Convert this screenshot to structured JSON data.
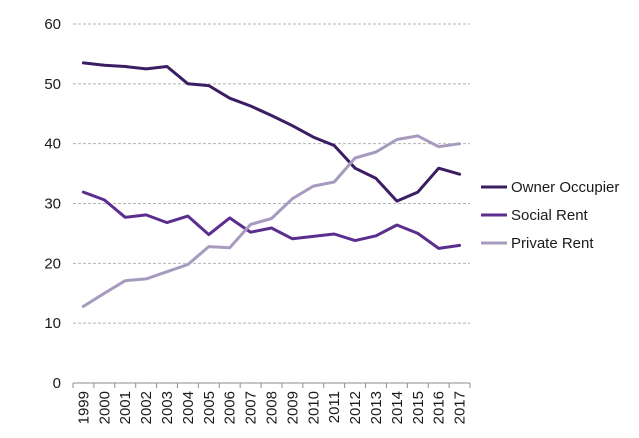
{
  "chart_data": {
    "type": "line",
    "title": "",
    "xlabel": "",
    "ylabel": "",
    "x": [
      "1999",
      "2000",
      "2001",
      "2002",
      "2003",
      "2004",
      "2005",
      "2006",
      "2007",
      "2008",
      "2009",
      "2010",
      "2011",
      "2012",
      "2013",
      "2014",
      "2015",
      "2016",
      "2017"
    ],
    "ylim": [
      0,
      60
    ],
    "yticks": [
      0,
      10,
      20,
      30,
      40,
      50,
      60
    ],
    "grid": "horizontal dashed",
    "legend_position": "right",
    "series": [
      {
        "name": "Owner Occupier",
        "color": "#3b1d63",
        "values": [
          53.5,
          53.1,
          52.9,
          52.5,
          52.9,
          50.0,
          49.7,
          47.6,
          46.3,
          44.7,
          43.0,
          41.1,
          39.7,
          35.9,
          34.2,
          30.4,
          31.9,
          35.9,
          34.9
        ]
      },
      {
        "name": "Social Rent",
        "color": "#5b2d8e",
        "values": [
          31.9,
          30.6,
          27.7,
          28.1,
          26.8,
          27.9,
          24.8,
          27.6,
          25.2,
          25.9,
          24.1,
          24.5,
          24.9,
          23.8,
          24.6,
          26.4,
          25.0,
          22.5,
          23.0
        ]
      },
      {
        "name": "Private Rent",
        "color": "#a69bbf",
        "values": [
          12.8,
          15.0,
          17.1,
          17.4,
          18.6,
          19.8,
          22.8,
          22.6,
          26.5,
          27.5,
          30.8,
          32.9,
          33.6,
          37.6,
          38.6,
          40.7,
          41.3,
          39.5,
          40.0
        ]
      }
    ]
  }
}
